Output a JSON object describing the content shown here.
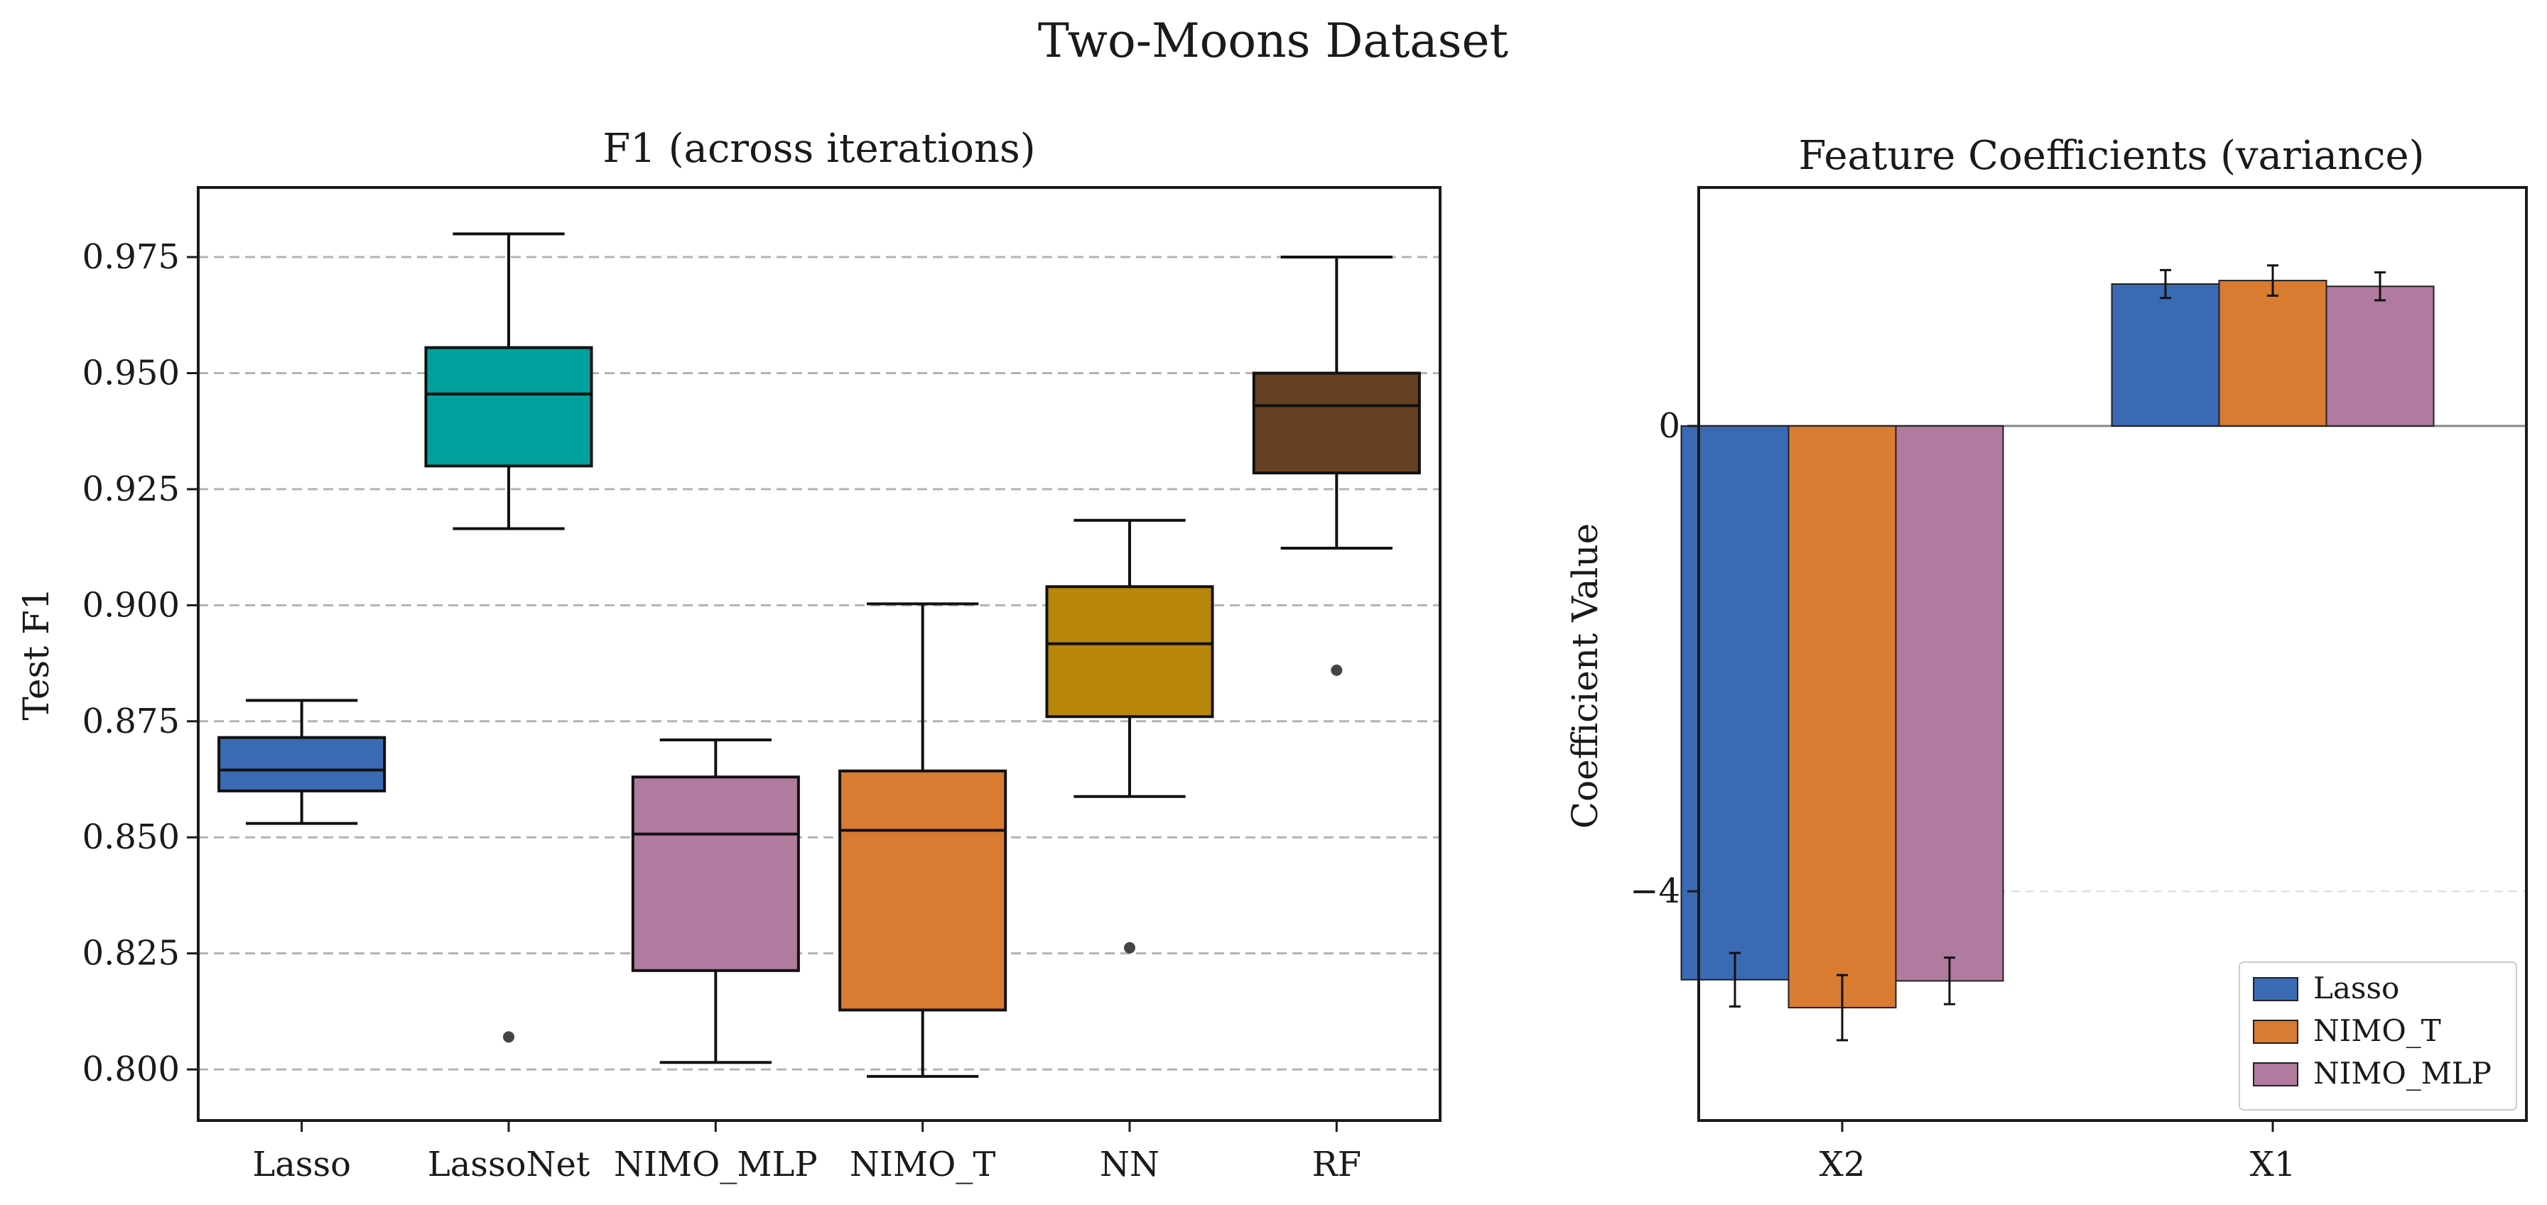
{
  "figure": {
    "suptitle": "Two-Moons Dataset"
  },
  "chart_data": [
    {
      "type": "box",
      "title": "F1 (across iterations)",
      "xlabel": "",
      "ylabel": "Test F1",
      "ylim": [
        0.789,
        0.99
      ],
      "yticks": [
        0.8,
        0.825,
        0.85,
        0.875,
        0.9,
        0.925,
        0.95,
        0.975
      ],
      "ytick_labels": [
        "0.800",
        "0.825",
        "0.850",
        "0.875",
        "0.900",
        "0.925",
        "0.950",
        "0.975"
      ],
      "grid": "horizontal-dashed",
      "categories": [
        "Lasso",
        "LassoNet",
        "NIMO_MLP",
        "NIMO_T",
        "NN",
        "RF"
      ],
      "boxes": [
        {
          "category": "Lasso",
          "color": "#3a6ab3",
          "whisker_low": 0.853,
          "q1": 0.86,
          "median": 0.8645,
          "q3": 0.8715,
          "whisker_high": 0.8795,
          "outliers": []
        },
        {
          "category": "LassoNet",
          "color": "#00a19d",
          "whisker_low": 0.9165,
          "q1": 0.93,
          "median": 0.9455,
          "q3": 0.9555,
          "whisker_high": 0.98,
          "outliers": [
            0.807
          ]
        },
        {
          "category": "NIMO_MLP",
          "color": "#b17a9f",
          "whisker_low": 0.8015,
          "q1": 0.8213,
          "median": 0.8507,
          "q3": 0.863,
          "whisker_high": 0.871,
          "outliers": []
        },
        {
          "category": "NIMO_T",
          "color": "#d97b31",
          "whisker_low": 0.7985,
          "q1": 0.8128,
          "median": 0.8515,
          "q3": 0.8643,
          "whisker_high": 0.9003,
          "outliers": []
        },
        {
          "category": "NN",
          "color": "#b8860b",
          "whisker_low": 0.8588,
          "q1": 0.876,
          "median": 0.8917,
          "q3": 0.904,
          "whisker_high": 0.9183,
          "outliers": [
            0.8262
          ]
        },
        {
          "category": "RF",
          "color": "#654121",
          "whisker_low": 0.9123,
          "q1": 0.9285,
          "median": 0.943,
          "q3": 0.95,
          "whisker_high": 0.975,
          "outliers": [
            0.886
          ]
        }
      ]
    },
    {
      "type": "bar",
      "title": "Feature Coefficients (variance)",
      "xlabel": "",
      "ylabel": "Coefficient Value",
      "ylim": [
        -5.97,
        2.05
      ],
      "yticks": [
        0,
        -4
      ],
      "ytick_labels": [
        "0",
        "−4"
      ],
      "grid": "horizontal-dashed",
      "categories": [
        "X2",
        "X1"
      ],
      "series": [
        {
          "name": "Lasso",
          "color": "#3a6ab3",
          "values": [
            -4.76,
            1.22
          ],
          "errors": [
            0.23,
            0.12
          ]
        },
        {
          "name": "NIMO_T",
          "color": "#d97b31",
          "values": [
            -5.0,
            1.25
          ],
          "errors": [
            0.28,
            0.13
          ]
        },
        {
          "name": "NIMO_MLP",
          "color": "#b17a9f",
          "values": [
            -4.77,
            1.2
          ],
          "errors": [
            0.2,
            0.12
          ]
        }
      ],
      "legend": "lower-right"
    }
  ]
}
